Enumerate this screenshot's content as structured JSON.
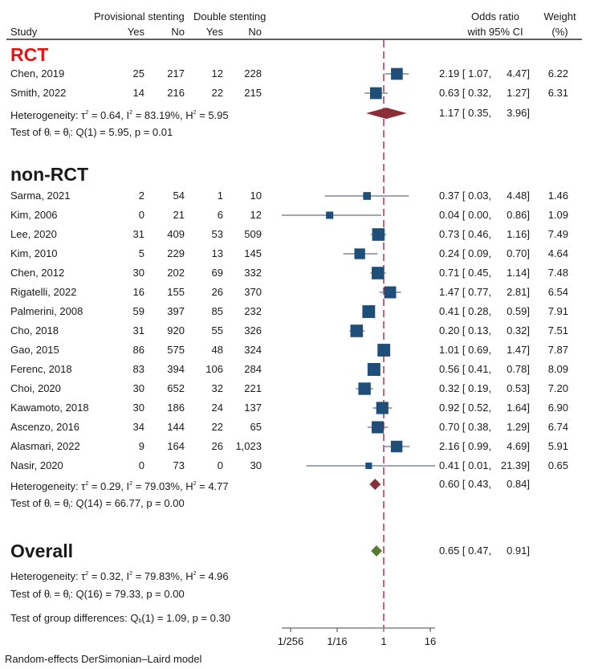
{
  "chart_data": {
    "type": "forest",
    "title": "",
    "xlabel": "",
    "x_scale": "log2",
    "xlim": [
      0.00390625,
      22.6
    ],
    "x_ticks": [
      {
        "value": 0.00390625,
        "label": "1/256"
      },
      {
        "value": 0.0625,
        "label": "1/16"
      },
      {
        "value": 1,
        "label": "1"
      },
      {
        "value": 16,
        "label": "16"
      }
    ],
    "reference_line": 1,
    "header": {
      "group1": "Provisional stenting",
      "group2": "Double stenting",
      "study": "Study",
      "yes": "Yes",
      "no": "No",
      "or_line1": "Odds ratio",
      "or_line2": "with 95% CI",
      "weight_line1": "Weight",
      "weight_line2": "(%)"
    },
    "groups": [
      {
        "name": "RCT",
        "studies": [
          {
            "study": "Chen, 2019",
            "ps_yes": "25",
            "ps_no": "217",
            "ds_yes": "12",
            "ds_no": "228",
            "or": 2.19,
            "lo": 1.07,
            "hi": 4.47,
            "or_text": "2.19 [ 1.07,",
            "hi_text": "4.47]",
            "weight": 6.22,
            "weight_text": "6.22"
          },
          {
            "study": "Smith, 2022",
            "ps_yes": "14",
            "ps_no": "216",
            "ds_yes": "22",
            "ds_no": "215",
            "or": 0.63,
            "lo": 0.32,
            "hi": 1.27,
            "or_text": "0.63 [ 0.32,",
            "hi_text": "1.27]",
            "weight": 6.31,
            "weight_text": "6.31"
          }
        ],
        "pooled": {
          "or": 1.17,
          "lo": 0.35,
          "hi": 3.96,
          "or_text": "1.17 [ 0.35,",
          "hi_text": "3.96]"
        },
        "heterogeneity": {
          "prefix": "Heterogeneity: τ",
          "tau2": "= 0.64, I",
          "i2": "= 83.19%, H",
          "h2": "= 5.95"
        },
        "test": {
          "prefix": "Test of θ",
          "mid": " = θ",
          "suffix": ": Q(1) = 5.95, p = 0.01"
        }
      },
      {
        "name": "non-RCT",
        "studies": [
          {
            "study": "Sarma, 2021",
            "ps_yes": "2",
            "ps_no": "54",
            "ds_yes": "1",
            "ds_no": "10",
            "or": 0.37,
            "lo": 0.03,
            "hi": 4.48,
            "or_text": "0.37 [ 0.03,",
            "hi_text": "4.48]",
            "weight": 1.46,
            "weight_text": "1.46"
          },
          {
            "study": "Kim, 2006",
            "ps_yes": "0",
            "ps_no": "21",
            "ds_yes": "6",
            "ds_no": "12",
            "or": 0.04,
            "lo": 0.0,
            "hi": 0.86,
            "or_text": "0.04 [ 0.00,",
            "hi_text": "0.86]",
            "weight": 1.09,
            "weight_text": "1.09"
          },
          {
            "study": "Lee, 2020",
            "ps_yes": "31",
            "ps_no": "409",
            "ds_yes": "53",
            "ds_no": "509",
            "or": 0.73,
            "lo": 0.46,
            "hi": 1.16,
            "or_text": "0.73 [ 0.46,",
            "hi_text": "1.16]",
            "weight": 7.49,
            "weight_text": "7.49"
          },
          {
            "study": "Kim, 2010",
            "ps_yes": "5",
            "ps_no": "229",
            "ds_yes": "13",
            "ds_no": "145",
            "or": 0.24,
            "lo": 0.09,
            "hi": 0.7,
            "or_text": "0.24 [ 0.09,",
            "hi_text": "0.70]",
            "weight": 4.64,
            "weight_text": "4.64"
          },
          {
            "study": "Chen, 2012",
            "ps_yes": "30",
            "ps_no": "202",
            "ds_yes": "69",
            "ds_no": "332",
            "or": 0.71,
            "lo": 0.45,
            "hi": 1.14,
            "or_text": "0.71 [ 0.45,",
            "hi_text": "1.14]",
            "weight": 7.48,
            "weight_text": "7.48"
          },
          {
            "study": "Rigatelli, 2022",
            "ps_yes": "16",
            "ps_no": "155",
            "ds_yes": "26",
            "ds_no": "370",
            "or": 1.47,
            "lo": 0.77,
            "hi": 2.81,
            "or_text": "1.47 [ 0.77,",
            "hi_text": "2.81]",
            "weight": 6.54,
            "weight_text": "6.54"
          },
          {
            "study": "Palmerini, 2008",
            "ps_yes": "59",
            "ps_no": "397",
            "ds_yes": "85",
            "ds_no": "232",
            "or": 0.41,
            "lo": 0.28,
            "hi": 0.59,
            "or_text": "0.41 [ 0.28,",
            "hi_text": "0.59]",
            "weight": 7.91,
            "weight_text": "7.91"
          },
          {
            "study": "Cho, 2018",
            "ps_yes": "31",
            "ps_no": "920",
            "ds_yes": "55",
            "ds_no": "326",
            "or": 0.2,
            "lo": 0.13,
            "hi": 0.32,
            "or_text": "0.20 [ 0.13,",
            "hi_text": "0.32]",
            "weight": 7.51,
            "weight_text": "7.51"
          },
          {
            "study": "Gao, 2015",
            "ps_yes": "86",
            "ps_no": "575",
            "ds_yes": "48",
            "ds_no": "324",
            "or": 1.01,
            "lo": 0.69,
            "hi": 1.47,
            "or_text": "1.01 [ 0.69,",
            "hi_text": "1.47]",
            "weight": 7.87,
            "weight_text": "7.87"
          },
          {
            "study": "Ferenc, 2018",
            "ps_yes": "83",
            "ps_no": "394",
            "ds_yes": "106",
            "ds_no": "284",
            "or": 0.56,
            "lo": 0.41,
            "hi": 0.78,
            "or_text": "0.56 [ 0.41,",
            "hi_text": "0.78]",
            "weight": 8.09,
            "weight_text": "8.09"
          },
          {
            "study": "Choi, 2020",
            "ps_yes": "30",
            "ps_no": "652",
            "ds_yes": "32",
            "ds_no": "221",
            "or": 0.32,
            "lo": 0.19,
            "hi": 0.53,
            "or_text": "0.32 [ 0.19,",
            "hi_text": "0.53]",
            "weight": 7.2,
            "weight_text": "7.20"
          },
          {
            "study": "Kawamoto, 2018",
            "ps_yes": "30",
            "ps_no": "186",
            "ds_yes": "24",
            "ds_no": "137",
            "or": 0.92,
            "lo": 0.52,
            "hi": 1.64,
            "or_text": "0.92 [ 0.52,",
            "hi_text": "1.64]",
            "weight": 6.9,
            "weight_text": "6.90"
          },
          {
            "study": "Ascenzo, 2016",
            "ps_yes": "34",
            "ps_no": "144",
            "ds_yes": "22",
            "ds_no": "65",
            "or": 0.7,
            "lo": 0.38,
            "hi": 1.29,
            "or_text": "0.70 [ 0.38,",
            "hi_text": "1.29]",
            "weight": 6.74,
            "weight_text": "6.74"
          },
          {
            "study": "Alasmari, 2022",
            "ps_yes": "9",
            "ps_no": "164",
            "ds_yes": "26",
            "ds_no": "1,023",
            "or": 2.16,
            "lo": 0.99,
            "hi": 4.69,
            "or_text": "2.16 [ 0.99,",
            "hi_text": "4.69]",
            "weight": 5.91,
            "weight_text": "5.91"
          },
          {
            "study": "Nasir, 2020",
            "ps_yes": "0",
            "ps_no": "73",
            "ds_yes": "0",
            "ds_no": "30",
            "or": 0.41,
            "lo": 0.01,
            "hi": 21.39,
            "or_text": "0.41 [ 0.01,",
            "hi_text": "21.39]",
            "weight": 0.65,
            "weight_text": "0.65"
          }
        ],
        "pooled": {
          "or": 0.6,
          "lo": 0.43,
          "hi": 0.84,
          "or_text": "0.60 [ 0.43,",
          "hi_text": "0.84]"
        },
        "heterogeneity": {
          "prefix": "Heterogeneity: τ",
          "tau2": "= 0.29, I",
          "i2": "= 79.03%, H",
          "h2": "= 4.77"
        },
        "test": {
          "prefix": "Test of θ",
          "mid": " = θ",
          "suffix": ": Q(14) = 66.77, p = 0.00"
        }
      }
    ],
    "overall": {
      "label": "Overall",
      "or": 0.65,
      "lo": 0.47,
      "hi": 0.91,
      "or_text": "0.65 [ 0.47,",
      "hi_text": "0.91]",
      "heterogeneity": {
        "prefix": "Heterogeneity: τ",
        "tau2": "= 0.32, I",
        "i2": "= 79.83%, H",
        "h2": "= 4.96"
      },
      "test": {
        "prefix": "Test of θ",
        "mid": " = θ",
        "suffix": ": Q(16) = 79.33, p = 0.00"
      },
      "group_diff": {
        "prefix": "Test of group differences: Q",
        "sub": "b",
        "suffix": "(1) = 1.09, p = 0.30"
      }
    },
    "footnote": "Random-effects DerSimonian–Laird model",
    "colors": {
      "study_marker": "#1f4e79",
      "ci_line": "#7a8b99",
      "group_diamond": "#8b2e3a",
      "overall_diamond": "#5a7a2e",
      "reference_line": "#a0143c",
      "rct_title": "#ee1111",
      "axis": "#444444"
    }
  }
}
